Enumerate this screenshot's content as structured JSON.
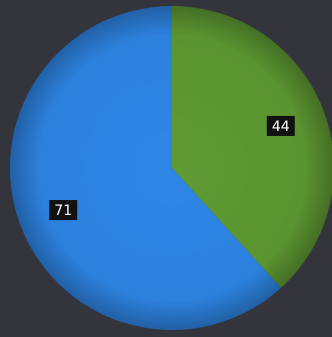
{
  "chart_data": {
    "type": "pie",
    "start_angle_deg": 0,
    "direction": "clockwise",
    "slices": [
      {
        "label": "",
        "value": 44,
        "color": "#5e9a32"
      },
      {
        "label": "",
        "value": 71,
        "color": "#2e86e6"
      }
    ],
    "data_labels": [
      "44",
      "71"
    ],
    "legend": "none"
  },
  "colors": {
    "background": "#34343c",
    "label_box": "#111111",
    "label_text": "#ffffff"
  }
}
